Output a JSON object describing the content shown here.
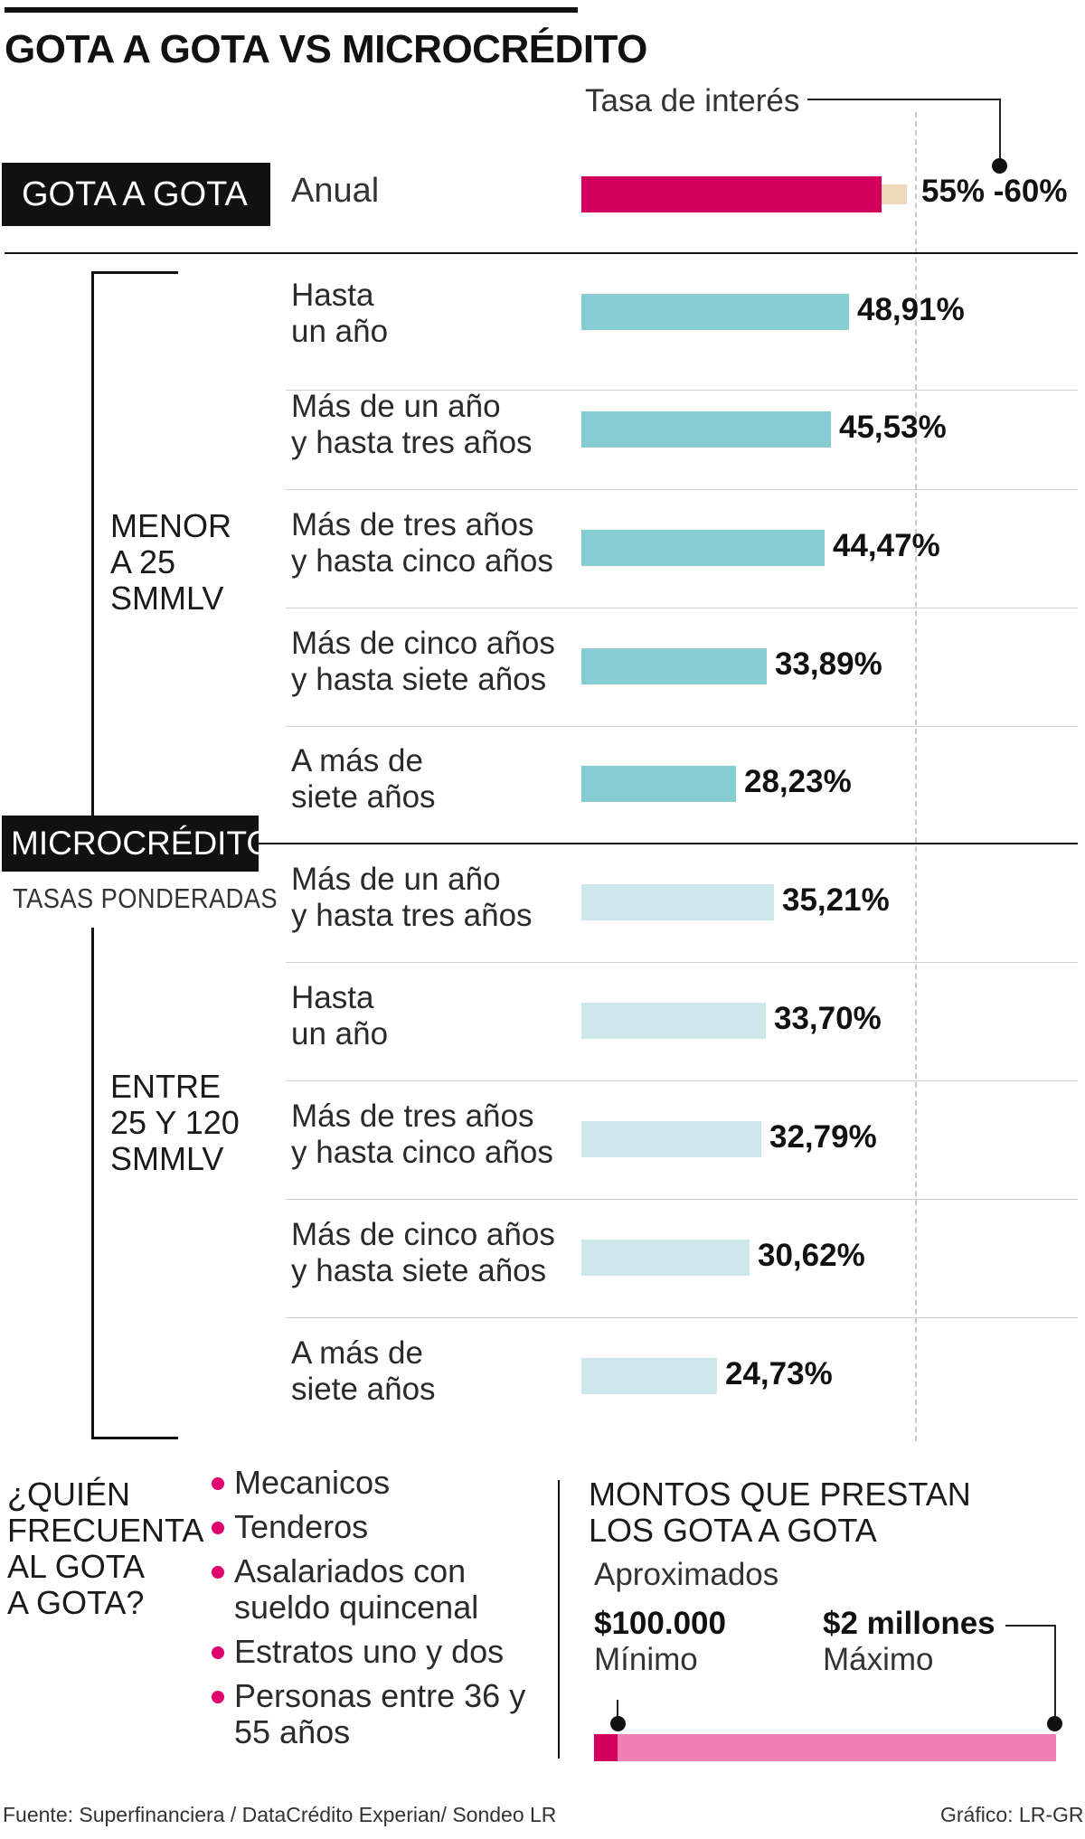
{
  "title": "GOTA A GOTA VS MICROCRÉDITO",
  "axis_label": "Tasa de interés",
  "gota": {
    "tag": "GOTA A GOTA",
    "row_label": "Anual",
    "range_label": "55% -60%",
    "range_low": 55,
    "range_high": 60,
    "colors": {
      "main": "#d4005d",
      "extension": "#edd9b9"
    }
  },
  "micro": {
    "tag": "MICROCRÉDITO",
    "subtag": "TASAS PONDERADAS",
    "groups": [
      {
        "label": "MENOR\nA 25\nSMMLV",
        "color": "#86cdd2"
      },
      {
        "label": "ENTRE\n25 Y 120\nSMMLV",
        "color": "#cde7eb"
      }
    ]
  },
  "chart_data": {
    "type": "bar",
    "orientation": "horizontal",
    "title": "GOTA A GOTA VS MICROCRÉDITO",
    "xlabel": "Tasa de interés",
    "unit": "%",
    "xlim": [
      0,
      60
    ],
    "reference_line": 50,
    "gota_a_gota": {
      "category": "Anual",
      "range": [
        55,
        60
      ],
      "label": "55% -60%"
    },
    "series": [
      {
        "name": "MENOR A 25 SMMLV",
        "categories": [
          "Hasta\nun año",
          "Más de un año\ny hasta tres años",
          "Más de tres años\ny hasta cinco años",
          "Más de cinco años\ny hasta siete años",
          "A más de\nsiete años"
        ],
        "values": [
          48.91,
          45.53,
          44.47,
          33.89,
          28.23
        ],
        "labels": [
          "48,91%",
          "45,53%",
          "44,47%",
          "33,89%",
          "28,23%"
        ]
      },
      {
        "name": "ENTRE 25 Y 120 SMMLV",
        "categories": [
          "Más de un año\ny hasta tres años",
          "Hasta\nun año",
          "Más de tres años\ny hasta cinco años",
          "Más de cinco años\ny hasta siete años",
          "A más de\nsiete años"
        ],
        "values": [
          35.21,
          33.7,
          32.79,
          30.62,
          24.73
        ],
        "labels": [
          "35,21%",
          "33,70%",
          "32,79%",
          "30,62%",
          "24,73%"
        ]
      }
    ]
  },
  "who": {
    "title": "¿QUIÉN\nFRECUENTA\nAL GOTA\nA GOTA?",
    "items": [
      "Mecanicos",
      "Tenderos",
      "Asalariados con\nsueldo quincenal",
      "Estratos uno y dos",
      "Personas entre 36 y\n55 años"
    ],
    "bullet_color": "#e0006d"
  },
  "montos": {
    "title": "MONTOS QUE PRESTAN\nLOS GOTA A GOTA",
    "subtitle": "Aproximados",
    "min_value": "$100.000",
    "min_label": "Mínimo",
    "max_value": "$2 millones",
    "max_label": "Máximo",
    "bar_colors": {
      "start": "#d4005d",
      "fill": "#f080b4"
    }
  },
  "footer": {
    "source": "Fuente: Superfinanciera / DataCrédito Experian/ Sondeo LR",
    "credit": "Gráfico: LR-GR"
  }
}
